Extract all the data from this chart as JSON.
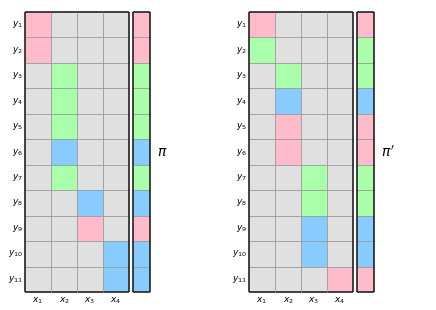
{
  "colors": {
    "pink": "#FFBBCC",
    "green": "#AAFFAA",
    "blue": "#88CCFF",
    "gray": "#E0E0E0",
    "white": "#FFFFFF"
  },
  "grid_pi": [
    [
      "pink",
      "gray",
      "gray",
      "gray"
    ],
    [
      "pink",
      "gray",
      "gray",
      "gray"
    ],
    [
      "gray",
      "green",
      "gray",
      "gray"
    ],
    [
      "gray",
      "green",
      "gray",
      "gray"
    ],
    [
      "gray",
      "green",
      "gray",
      "gray"
    ],
    [
      "gray",
      "blue",
      "gray",
      "gray"
    ],
    [
      "gray",
      "green",
      "gray",
      "gray"
    ],
    [
      "gray",
      "gray",
      "blue",
      "gray"
    ],
    [
      "gray",
      "gray",
      "pink",
      "gray"
    ],
    [
      "gray",
      "gray",
      "gray",
      "blue"
    ],
    [
      "gray",
      "gray",
      "gray",
      "blue"
    ]
  ],
  "strip_pi": [
    "pink",
    "pink",
    "green",
    "green",
    "green",
    "blue",
    "green",
    "blue",
    "pink",
    "blue",
    "blue"
  ],
  "grid_pi2": [
    [
      "pink",
      "gray",
      "gray",
      "gray"
    ],
    [
      "green",
      "gray",
      "gray",
      "gray"
    ],
    [
      "gray",
      "green",
      "gray",
      "gray"
    ],
    [
      "gray",
      "blue",
      "gray",
      "gray"
    ],
    [
      "gray",
      "pink",
      "gray",
      "gray"
    ],
    [
      "gray",
      "pink",
      "gray",
      "gray"
    ],
    [
      "gray",
      "gray",
      "green",
      "gray"
    ],
    [
      "gray",
      "gray",
      "green",
      "gray"
    ],
    [
      "gray",
      "gray",
      "blue",
      "gray"
    ],
    [
      "gray",
      "gray",
      "blue",
      "gray"
    ],
    [
      "gray",
      "gray",
      "gray",
      "pink"
    ]
  ],
  "strip_pi2": [
    "pink",
    "green",
    "green",
    "blue",
    "pink",
    "pink",
    "green",
    "green",
    "blue",
    "blue",
    "pink"
  ],
  "y_labels": [
    "1",
    "2",
    "3",
    "4",
    "5",
    "6",
    "7",
    "8",
    "9",
    "10",
    "11"
  ],
  "x_labels": [
    "1",
    "2",
    "3",
    "4"
  ],
  "n_rows": 11,
  "n_cols": 4,
  "fig_bg": "#FFFFFF",
  "outer_border_color": "#222222",
  "inner_line_color": "#999999",
  "outer_lw": 1.2,
  "inner_lw": 0.6,
  "cell_edge_color": "#999999"
}
